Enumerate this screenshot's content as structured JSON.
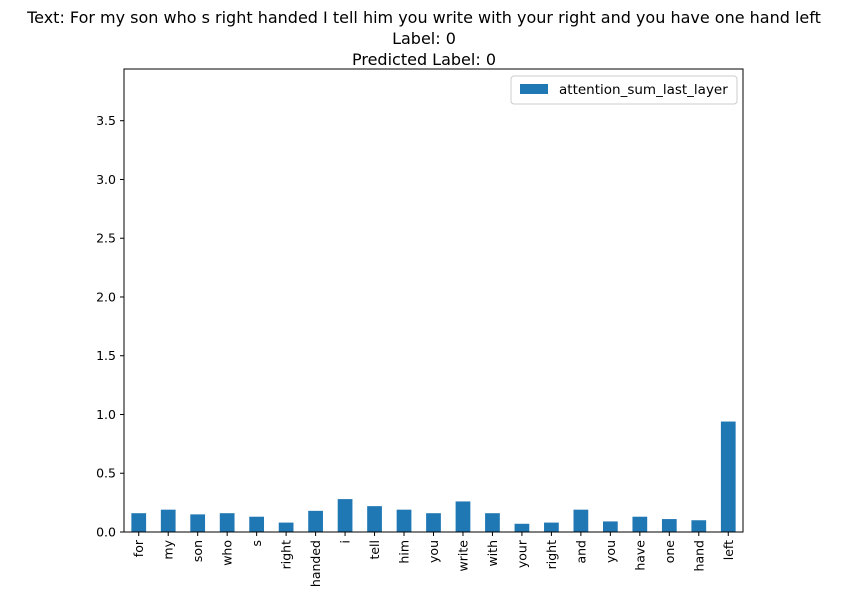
{
  "chart_data": {
    "type": "bar",
    "title_lines": [
      "Text: For my son who s right handed I tell him you write with your right and you have one hand left",
      "Label: 0",
      "Predicted Label: 0"
    ],
    "categories": [
      "for",
      "my",
      "son",
      "who",
      "s",
      "right",
      "handed",
      "i",
      "tell",
      "him",
      "you",
      "write",
      "with",
      "your",
      "right",
      "and",
      "you",
      "have",
      "one",
      "hand",
      "left"
    ],
    "series": [
      {
        "name": "attention_sum_last_layer",
        "color": "#1f77b4",
        "values": [
          0.16,
          0.19,
          0.15,
          0.16,
          0.13,
          0.08,
          0.18,
          0.28,
          0.22,
          0.19,
          0.16,
          0.26,
          0.16,
          0.07,
          0.08,
          0.19,
          0.09,
          0.13,
          0.11,
          0.1,
          0.94
        ]
      }
    ],
    "yticks": [
      "0.0",
      "0.5",
      "1.0",
      "1.5",
      "2.0",
      "2.5",
      "3.0",
      "3.5"
    ],
    "ylim": [
      0,
      3.94
    ],
    "xlabel": "",
    "ylabel": "",
    "legend_position": "top-right",
    "grid": false
  }
}
